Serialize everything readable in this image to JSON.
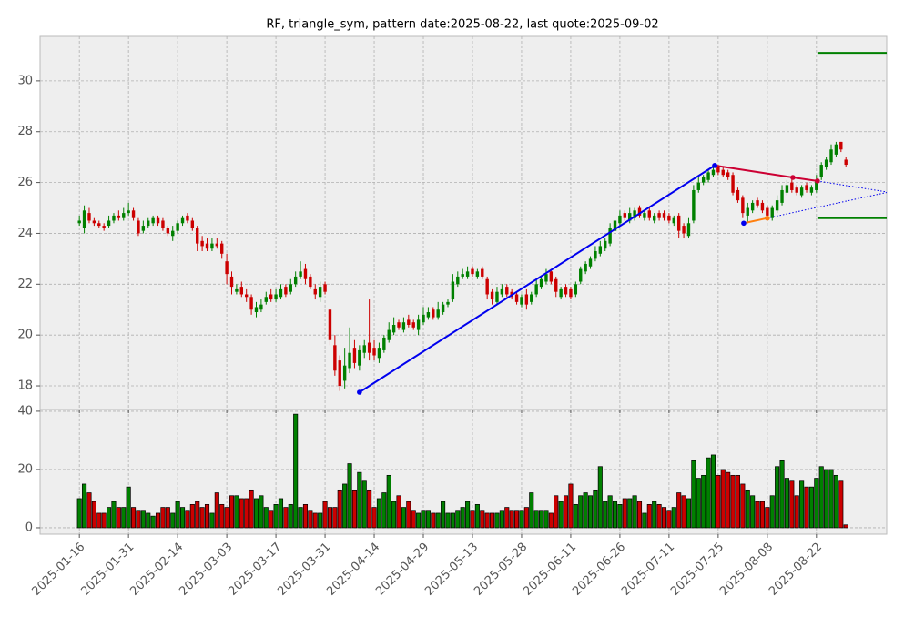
{
  "chart_data": {
    "type": "candlestick",
    "title": "RF, triangle_sym, pattern date:2025-08-22, last quote:2025-09-02",
    "up_color": "#008000",
    "down_color": "#cc0000",
    "grid": true,
    "xlim": [
      -8,
      164.3
    ],
    "xticks": [
      {
        "value": 0,
        "label": "2025-01-16"
      },
      {
        "value": 10,
        "label": "2025-01-31"
      },
      {
        "value": 20,
        "label": "2025-02-14"
      },
      {
        "value": 30,
        "label": "2025-03-03"
      },
      {
        "value": 40,
        "label": "2025-03-17"
      },
      {
        "value": 50,
        "label": "2025-03-31"
      },
      {
        "value": 60,
        "label": "2025-04-14"
      },
      {
        "value": 70,
        "label": "2025-04-29"
      },
      {
        "value": 80,
        "label": "2025-05-13"
      },
      {
        "value": 90,
        "label": "2025-05-28"
      },
      {
        "value": 100,
        "label": "2025-06-11"
      },
      {
        "value": 110,
        "label": "2025-06-26"
      },
      {
        "value": 120,
        "label": "2025-07-11"
      },
      {
        "value": 130,
        "label": "2025-07-25"
      },
      {
        "value": 140,
        "label": "2025-08-08"
      },
      {
        "value": 150,
        "label": "2025-08-22"
      }
    ],
    "ylim": [
      17.07,
      31.75
    ],
    "yticks": [
      18,
      20,
      22,
      24,
      26,
      28,
      30
    ],
    "y2lim": [
      -2.2,
      40.6
    ],
    "y2ticks": [
      0,
      20,
      40
    ],
    "open": [
      24.4,
      24.2,
      24.8,
      24.5,
      24.4,
      24.3,
      24.3,
      24.5,
      24.7,
      24.6,
      24.8,
      24.9,
      24.5,
      24.1,
      24.3,
      24.4,
      24.6,
      24.5,
      24.2,
      23.9,
      24.1,
      24.4,
      24.7,
      24.5,
      24.2,
      23.7,
      23.6,
      23.4,
      23.6,
      23.6,
      22.9,
      22.3,
      21.7,
      21.9,
      21.6,
      21.5,
      20.9,
      21.0,
      21.3,
      21.6,
      21.4,
      21.5,
      21.9,
      21.7,
      22.0,
      22.3,
      22.6,
      22.3,
      21.8,
      21.5,
      22.0,
      21.0,
      19.6,
      19.0,
      18.2,
      18.7,
      19.5,
      18.8,
      19.3,
      19.7,
      19.5,
      19.1,
      19.4,
      19.8,
      20.1,
      20.5,
      20.2,
      20.6,
      20.5,
      20.2,
      20.5,
      20.7,
      21.0,
      20.7,
      20.9,
      21.2,
      21.4,
      22.0,
      22.3,
      22.3,
      22.6,
      22.3,
      22.6,
      22.2,
      21.7,
      21.3,
      21.6,
      21.9,
      21.7,
      21.6,
      21.2,
      21.6,
      21.3,
      21.6,
      21.9,
      22.1,
      22.5,
      22.2,
      21.5,
      21.9,
      21.8,
      21.6,
      22.1,
      22.5,
      22.7,
      23.0,
      23.2,
      23.4,
      23.6,
      24.1,
      24.4,
      24.8,
      24.5,
      24.6,
      25.0,
      24.6,
      24.9,
      24.5,
      24.8,
      24.8,
      24.7,
      24.4,
      24.7,
      24.3,
      23.9,
      24.5,
      25.7,
      26.0,
      26.1,
      26.3,
      26.6,
      26.5,
      26.4,
      26.3,
      25.7,
      25.4,
      24.7,
      24.9,
      25.3,
      25.2,
      25.0,
      24.6,
      24.9,
      25.2,
      25.6,
      26.0,
      25.8,
      25.5,
      25.9,
      25.6,
      25.7,
      26.2,
      26.6,
      26.8,
      27.1,
      27.6,
      26.9
    ],
    "high": [
      24.7,
      25.1,
      25.0,
      24.6,
      24.5,
      24.4,
      24.7,
      24.8,
      24.9,
      25.0,
      25.2,
      25.0,
      24.6,
      24.5,
      24.6,
      24.7,
      24.7,
      24.6,
      24.3,
      24.3,
      24.5,
      24.7,
      24.8,
      24.6,
      24.3,
      23.9,
      23.8,
      23.8,
      23.8,
      23.7,
      23.2,
      22.5,
      22.0,
      22.1,
      21.8,
      21.6,
      21.3,
      21.4,
      21.7,
      21.8,
      21.8,
      22.0,
      22.0,
      22.2,
      22.5,
      22.9,
      22.8,
      22.4,
      22.0,
      22.1,
      22.1,
      21.0,
      20.0,
      19.2,
      19.5,
      20.3,
      19.8,
      19.6,
      19.8,
      21.4,
      19.8,
      19.7,
      20.0,
      20.5,
      20.7,
      20.6,
      20.7,
      20.8,
      20.6,
      20.8,
      21.1,
      21.1,
      21.1,
      21.3,
      21.3,
      21.4,
      22.4,
      22.5,
      22.6,
      22.7,
      22.7,
      22.6,
      22.7,
      22.3,
      21.8,
      21.9,
      22.0,
      22.0,
      21.8,
      21.7,
      21.6,
      21.8,
      21.7,
      22.2,
      22.3,
      22.6,
      22.6,
      22.3,
      21.9,
      22.0,
      21.9,
      22.1,
      22.7,
      22.9,
      23.1,
      23.5,
      23.7,
      23.8,
      24.4,
      24.7,
      24.9,
      24.9,
      25.0,
      25.0,
      25.1,
      24.9,
      25.0,
      24.8,
      24.9,
      24.9,
      24.8,
      24.7,
      24.8,
      24.4,
      24.6,
      25.9,
      26.2,
      26.3,
      26.5,
      26.7,
      26.7,
      26.6,
      26.5,
      26.4,
      25.8,
      25.5,
      25.2,
      25.3,
      25.4,
      25.3,
      25.1,
      25.1,
      25.5,
      25.9,
      26.1,
      26.2,
      25.9,
      25.9,
      26.0,
      25.9,
      26.3,
      26.8,
      27.0,
      27.5,
      27.6,
      27.6,
      27.0
    ],
    "low": [
      24.3,
      24.0,
      24.4,
      24.3,
      24.2,
      24.1,
      24.2,
      24.4,
      24.5,
      24.5,
      24.7,
      24.5,
      23.9,
      24.0,
      24.2,
      24.3,
      24.3,
      24.1,
      23.9,
      23.7,
      24.0,
      24.3,
      24.4,
      24.1,
      23.3,
      23.3,
      23.3,
      23.3,
      23.4,
      23.0,
      22.0,
      21.6,
      21.6,
      21.5,
      21.3,
      20.8,
      20.7,
      20.9,
      21.2,
      21.3,
      21.3,
      21.4,
      21.5,
      21.6,
      21.9,
      22.2,
      22.0,
      21.8,
      21.4,
      21.3,
      21.6,
      19.6,
      18.4,
      17.8,
      17.9,
      18.5,
      18.7,
      18.6,
      19.1,
      19.0,
      19.0,
      18.9,
      19.3,
      19.7,
      20.0,
      20.2,
      20.1,
      20.3,
      20.2,
      20.0,
      20.4,
      20.6,
      20.6,
      20.6,
      20.8,
      21.1,
      21.3,
      21.9,
      22.2,
      22.2,
      22.3,
      22.2,
      22.2,
      21.4,
      21.2,
      21.2,
      21.5,
      21.5,
      21.4,
      21.2,
      21.1,
      21.0,
      21.2,
      21.5,
      21.8,
      22.0,
      22.0,
      21.5,
      21.4,
      21.5,
      21.4,
      21.5,
      22.0,
      22.4,
      22.6,
      22.9,
      23.1,
      23.3,
      23.5,
      24.0,
      24.3,
      24.5,
      24.4,
      24.5,
      24.6,
      24.5,
      24.5,
      24.4,
      24.5,
      24.5,
      24.4,
      24.3,
      23.8,
      23.8,
      23.8,
      24.4,
      25.6,
      25.9,
      26.0,
      26.2,
      26.3,
      26.2,
      26.1,
      25.5,
      25.2,
      24.6,
      24.4,
      24.8,
      25.0,
      24.8,
      24.5,
      24.5,
      24.8,
      25.1,
      25.5,
      25.6,
      25.5,
      25.4,
      25.6,
      25.5,
      25.6,
      26.1,
      26.5,
      26.7,
      27.0,
      27.2,
      26.6
    ],
    "close": [
      24.5,
      24.9,
      24.5,
      24.4,
      24.3,
      24.2,
      24.5,
      24.7,
      24.6,
      24.8,
      24.9,
      24.6,
      24.0,
      24.3,
      24.5,
      24.6,
      24.4,
      24.2,
      24.0,
      24.1,
      24.4,
      24.6,
      24.5,
      24.2,
      23.6,
      23.5,
      23.4,
      23.6,
      23.5,
      23.2,
      22.4,
      21.9,
      21.8,
      21.6,
      21.5,
      21.0,
      21.1,
      21.2,
      21.5,
      21.4,
      21.6,
      21.8,
      21.6,
      22.0,
      22.3,
      22.5,
      22.2,
      21.9,
      21.6,
      21.9,
      21.7,
      19.8,
      18.6,
      18.0,
      18.8,
      19.3,
      18.9,
      19.4,
      19.6,
      19.3,
      19.2,
      19.5,
      19.9,
      20.2,
      20.4,
      20.3,
      20.5,
      20.4,
      20.3,
      20.6,
      20.8,
      20.9,
      20.7,
      21.0,
      21.2,
      21.3,
      22.1,
      22.3,
      22.4,
      22.5,
      22.4,
      22.5,
      22.3,
      21.6,
      21.4,
      21.7,
      21.8,
      21.6,
      21.5,
      21.3,
      21.5,
      21.2,
      21.6,
      22.0,
      22.2,
      22.4,
      22.1,
      21.7,
      21.8,
      21.6,
      21.5,
      22.0,
      22.6,
      22.8,
      23.0,
      23.3,
      23.5,
      23.7,
      24.2,
      24.5,
      24.7,
      24.6,
      24.8,
      24.9,
      24.7,
      24.8,
      24.6,
      24.7,
      24.6,
      24.6,
      24.5,
      24.6,
      24.1,
      24.0,
      24.4,
      25.7,
      26.0,
      26.2,
      26.4,
      26.5,
      26.4,
      26.3,
      26.2,
      25.6,
      25.3,
      24.8,
      25.0,
      25.2,
      25.1,
      24.9,
      24.7,
      25.0,
      25.3,
      25.7,
      25.9,
      25.7,
      25.6,
      25.8,
      25.7,
      25.8,
      26.1,
      26.7,
      26.9,
      27.3,
      27.5,
      27.3,
      26.7
    ],
    "volume": [
      10,
      15,
      12,
      9,
      5,
      5,
      7,
      9,
      7,
      7,
      14,
      7,
      6,
      6,
      5,
      4,
      5,
      7,
      7,
      5,
      9,
      7,
      6,
      8,
      9,
      7,
      8,
      5,
      12,
      8,
      7,
      11,
      11,
      10,
      10,
      13,
      10,
      11,
      7,
      6,
      8,
      10,
      7,
      8,
      39,
      7,
      8,
      6,
      5,
      5,
      9,
      7,
      7,
      13,
      15,
      22,
      13,
      19,
      16,
      13,
      7,
      10,
      12,
      18,
      9,
      11,
      7,
      9,
      6,
      5,
      6,
      6,
      5,
      5,
      9,
      5,
      5,
      6,
      7,
      9,
      6,
      8,
      6,
      5,
      5,
      5,
      6,
      7,
      6,
      6,
      6,
      7,
      12,
      6,
      6,
      6,
      5,
      11,
      9,
      11,
      15,
      8,
      11,
      12,
      11,
      13,
      21,
      9,
      11,
      9,
      8,
      10,
      10,
      11,
      9,
      5,
      8,
      9,
      8,
      7,
      6,
      7,
      12,
      11,
      10,
      23,
      17,
      18,
      24,
      25,
      18,
      20,
      19,
      18,
      18,
      15,
      13,
      11,
      9,
      9,
      7,
      11,
      21,
      23,
      17,
      16,
      11,
      16,
      14,
      14,
      17,
      21,
      20,
      20,
      18,
      16,
      1
    ],
    "overlays": [
      {
        "color": "#0000ee",
        "style": "solid",
        "x": [
          57,
          129.3
        ],
        "y": [
          17.75,
          26.67
        ],
        "marker_colors": [
          "#0000ee",
          "#0000ee"
        ]
      },
      {
        "color": "#cc0033",
        "style": "solid",
        "x": [
          129.3,
          145.2,
          150.2
        ],
        "y": [
          26.67,
          26.2,
          26.06
        ],
        "marker_colors": [
          "#0000ee",
          "#cc0033",
          "#cc0033"
        ]
      },
      {
        "color": "#ff7f0e",
        "style": "solid",
        "x": [
          135.2,
          140
        ],
        "y": [
          24.4,
          24.6
        ],
        "marker_colors": [
          "#0000ee",
          "#ff7f0e"
        ]
      },
      {
        "color": "#0000ee",
        "style": "dotted",
        "x": [
          150.2,
          164.3
        ],
        "y": [
          26.06,
          25.63
        ]
      },
      {
        "color": "#0000ee",
        "style": "dotted",
        "x": [
          140,
          164.3
        ],
        "y": [
          24.6,
          25.61
        ]
      },
      {
        "color": "#008000",
        "style": "solid",
        "x": [
          150.2,
          164.3
        ],
        "y": [
          31.1,
          31.1
        ]
      },
      {
        "color": "#008000",
        "style": "solid",
        "x": [
          150.2,
          164.3
        ],
        "y": [
          24.6,
          24.6
        ]
      }
    ]
  }
}
